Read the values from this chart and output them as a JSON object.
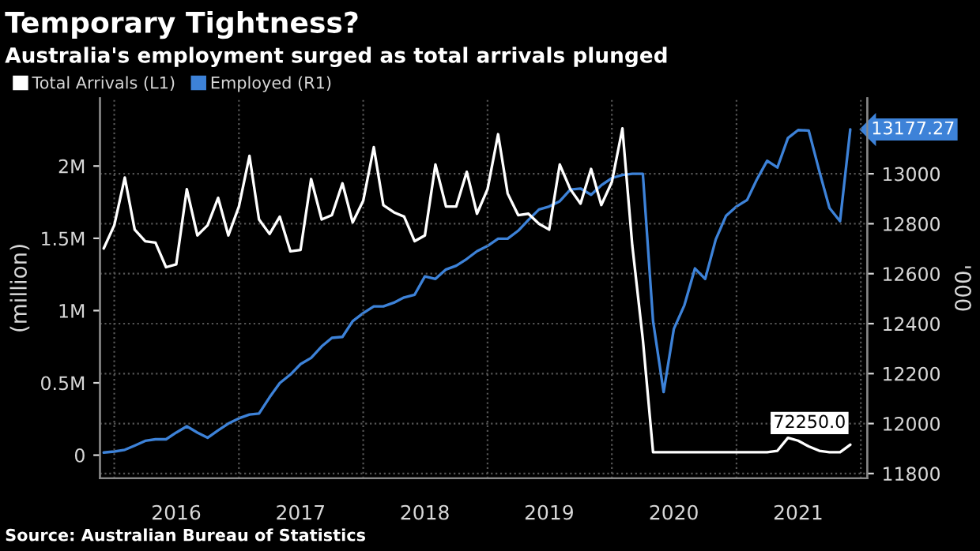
{
  "chart_data": {
    "type": "line",
    "title": "Temporary Tightness?",
    "subtitle": "Australia's employment surged as total arrivals plunged",
    "ylabel": "(million)",
    "y2label": "'000",
    "annotations": [
      "Source: Australian Bureau of Statistics"
    ],
    "x": [
      "2015-12",
      "2016-01",
      "2016-02",
      "2016-03",
      "2016-04",
      "2016-05",
      "2016-06",
      "2016-07",
      "2016-08",
      "2016-09",
      "2016-10",
      "2016-11",
      "2016-12",
      "2017-01",
      "2017-02",
      "2017-03",
      "2017-04",
      "2017-05",
      "2017-06",
      "2017-07",
      "2017-08",
      "2017-09",
      "2017-10",
      "2017-11",
      "2017-12",
      "2018-01",
      "2018-02",
      "2018-03",
      "2018-04",
      "2018-05",
      "2018-06",
      "2018-07",
      "2018-08",
      "2018-09",
      "2018-10",
      "2018-11",
      "2018-12",
      "2019-01",
      "2019-02",
      "2019-03",
      "2019-04",
      "2019-05",
      "2019-06",
      "2019-07",
      "2019-08",
      "2019-09",
      "2019-10",
      "2019-11",
      "2019-12",
      "2020-01",
      "2020-02",
      "2020-03",
      "2020-04",
      "2020-05",
      "2020-06",
      "2020-07",
      "2020-08",
      "2020-09",
      "2020-10",
      "2020-11",
      "2020-12",
      "2021-01",
      "2021-02",
      "2021-03",
      "2021-04",
      "2021-05",
      "2021-06",
      "2021-07",
      "2021-08",
      "2021-09",
      "2021-10",
      "2021-11",
      "2021-12"
    ],
    "series": [
      {
        "name": "Total Arrivals (L1)",
        "color": "#ffffff",
        "axis": "y",
        "values": [
          1430000,
          1590000,
          1920000,
          1560000,
          1480000,
          1470000,
          1300000,
          1320000,
          1840000,
          1520000,
          1590000,
          1780000,
          1520000,
          1720000,
          2070000,
          1630000,
          1530000,
          1650000,
          1410000,
          1420000,
          1910000,
          1630000,
          1660000,
          1880000,
          1610000,
          1760000,
          2130000,
          1730000,
          1680000,
          1650000,
          1480000,
          1520000,
          2010000,
          1720000,
          1720000,
          1960000,
          1670000,
          1840000,
          2220000,
          1810000,
          1660000,
          1670000,
          1600000,
          1560000,
          2010000,
          1840000,
          1740000,
          1980000,
          1730000,
          1890000,
          2260000,
          1450000,
          800000,
          20000,
          20000,
          20000,
          20000,
          20000,
          20000,
          20000,
          20000,
          20000,
          20000,
          20000,
          20000,
          30000,
          120000,
          100000,
          60000,
          30000,
          20000,
          20000,
          72250
        ],
        "value_labels": [
          null,
          null,
          null,
          null,
          null,
          null,
          null,
          null,
          null,
          null,
          null,
          null,
          null,
          null,
          null,
          null,
          null,
          null,
          null,
          null,
          null,
          null,
          null,
          null,
          null,
          null,
          null,
          null,
          null,
          null,
          null,
          null,
          null,
          null,
          null,
          null,
          null,
          null,
          null,
          null,
          null,
          null,
          null,
          null,
          null,
          null,
          null,
          null,
          null,
          null,
          null,
          null,
          null,
          null,
          null,
          null,
          null,
          null,
          null,
          null,
          null,
          null,
          null,
          null,
          null,
          null,
          null,
          null,
          null,
          null,
          null,
          null,
          "72250.0"
        ]
      },
      {
        "name": "Employed (R1)",
        "color": "#3d82d8",
        "axis": "y2",
        "values": [
          11884,
          11888,
          11895,
          11912,
          11931,
          11937,
          11937,
          11964,
          11989,
          11964,
          11943,
          11973,
          12000,
          12021,
          12036,
          12040,
          12105,
          12162,
          12196,
          12238,
          12263,
          12309,
          12343,
          12347,
          12410,
          12442,
          12469,
          12469,
          12484,
          12505,
          12516,
          12589,
          12579,
          12617,
          12632,
          12659,
          12690,
          12711,
          12740,
          12740,
          12772,
          12815,
          12857,
          12869,
          12890,
          12937,
          12941,
          12916,
          12954,
          12983,
          12995,
          13000,
          13000,
          12410,
          12126,
          12379,
          12474,
          12621,
          12579,
          12737,
          12831,
          12869,
          12895,
          12975,
          13052,
          13025,
          13143,
          13175,
          13173,
          13011,
          12863,
          12810,
          13177.27
        ],
        "value_labels": [
          null,
          null,
          null,
          null,
          null,
          null,
          null,
          null,
          null,
          null,
          null,
          null,
          null,
          null,
          null,
          null,
          null,
          null,
          null,
          null,
          null,
          null,
          null,
          null,
          null,
          null,
          null,
          null,
          null,
          null,
          null,
          null,
          null,
          null,
          null,
          null,
          null,
          null,
          null,
          null,
          null,
          null,
          null,
          null,
          null,
          null,
          null,
          null,
          null,
          null,
          null,
          null,
          null,
          null,
          null,
          null,
          null,
          null,
          null,
          null,
          null,
          null,
          null,
          null,
          null,
          null,
          null,
          null,
          null,
          null,
          null,
          null,
          "13177.27"
        ]
      }
    ],
    "xlim": [
      "2015-11-20",
      "2022-01-20"
    ],
    "xticks": [
      {
        "value": "2016-01-01",
        "label": null
      },
      {
        "value": "2016-07-01",
        "label": "2016"
      },
      {
        "value": "2017-01-01",
        "label": null
      },
      {
        "value": "2017-07-01",
        "label": "2017"
      },
      {
        "value": "2018-01-01",
        "label": null
      },
      {
        "value": "2018-07-01",
        "label": "2018"
      },
      {
        "value": "2019-01-01",
        "label": null
      },
      {
        "value": "2019-07-01",
        "label": "2019"
      },
      {
        "value": "2020-01-01",
        "label": null
      },
      {
        "value": "2020-07-01",
        "label": "2020"
      },
      {
        "value": "2021-01-01",
        "label": null
      },
      {
        "value": "2021-07-01",
        "label": "2021"
      },
      {
        "value": "2022-01-01",
        "label": null
      }
    ],
    "ylim": [
      -160000,
      2470000
    ],
    "yticks": [
      0,
      {
        "value": 500000,
        "label": "0.5M"
      },
      {
        "value": 1000000,
        "label": "1M"
      },
      {
        "value": 1500000,
        "label": "1.5M"
      },
      {
        "value": 2000000,
        "label": "2M"
      }
    ],
    "y2lim": [
      11781,
      13303
    ],
    "y2ticks": [
      11800,
      12000,
      12200,
      12400,
      12600,
      12800,
      13000
    ],
    "grid": true,
    "legend": "top left"
  }
}
